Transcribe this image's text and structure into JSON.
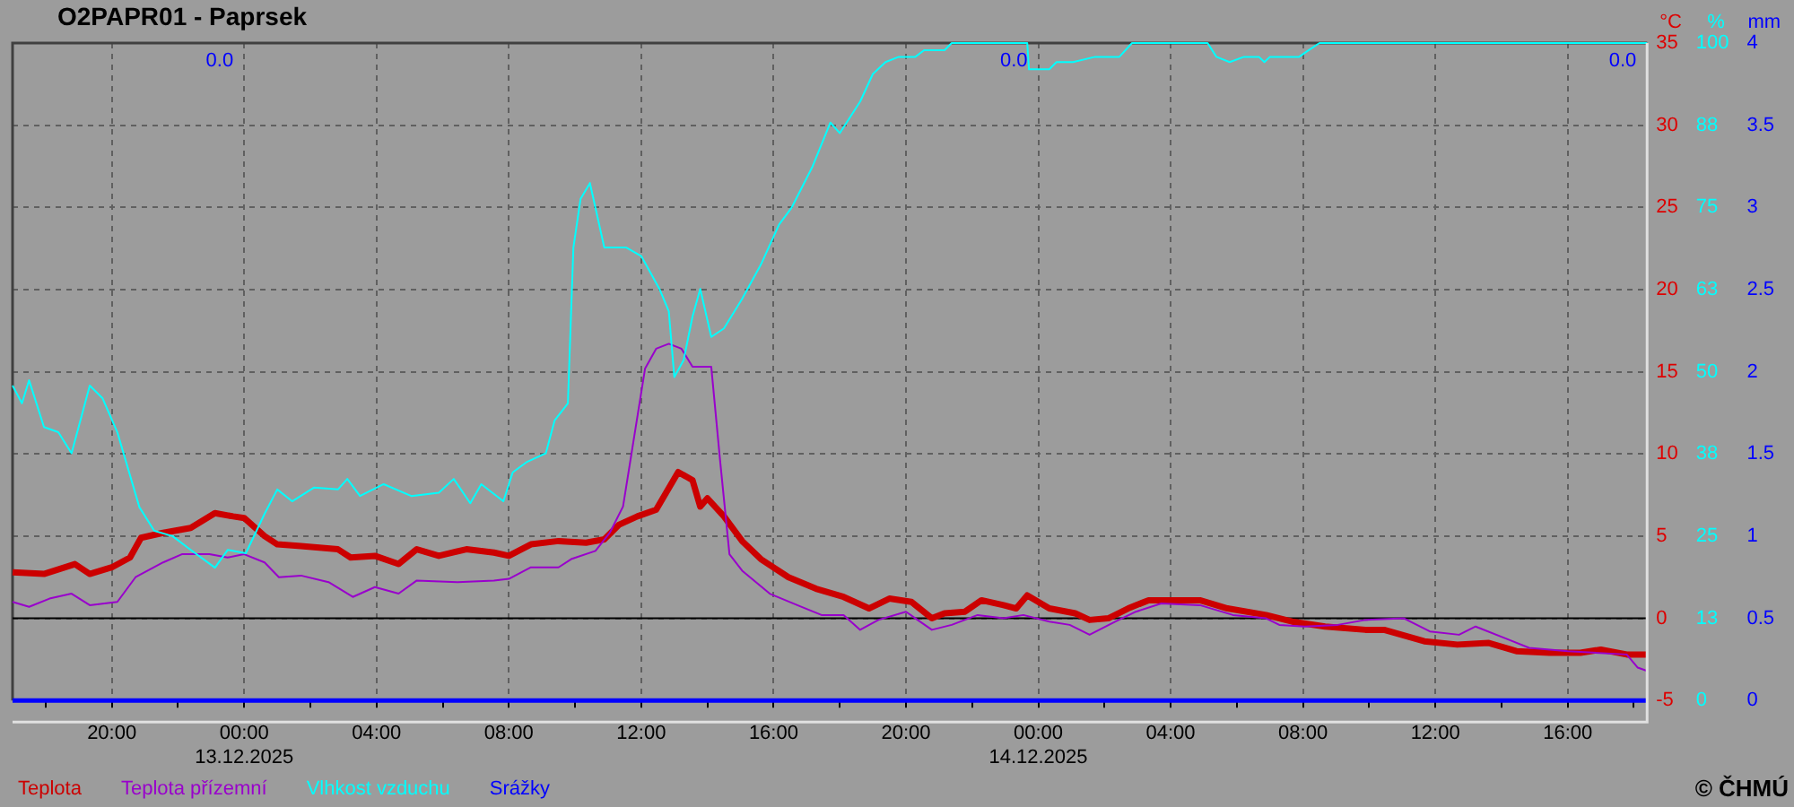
{
  "chart_data": {
    "type": "line",
    "title": "O2PAPR01 - Paprsek",
    "ylabel": "°C",
    "y2label": "%",
    "y3label": "mm",
    "xlim": [
      "2025-12-12T17:00",
      "2025-12-14T18:24"
    ],
    "xticks": [
      {
        "value": "2025-12-12T18:00",
        "label": null
      },
      {
        "value": "2025-12-12T20:00",
        "label": "20:00"
      },
      {
        "value": "2025-12-12T22:00",
        "label": null
      },
      {
        "value": "2025-12-13T00:00",
        "label": "00:00\n13.12.2025"
      },
      {
        "value": "2025-12-13T02:00",
        "label": null
      },
      {
        "value": "2025-12-13T04:00",
        "label": "04:00"
      },
      {
        "value": "2025-12-13T06:00",
        "label": null
      },
      {
        "value": "2025-12-13T08:00",
        "label": "08:00"
      },
      {
        "value": "2025-12-13T10:00",
        "label": null
      },
      {
        "value": "2025-12-13T12:00",
        "label": "12:00"
      },
      {
        "value": "2025-12-13T14:00",
        "label": null
      },
      {
        "value": "2025-12-13T16:00",
        "label": "16:00"
      },
      {
        "value": "2025-12-13T18:00",
        "label": null
      },
      {
        "value": "2025-12-13T20:00",
        "label": "20:00"
      },
      {
        "value": "2025-12-13T22:00",
        "label": null
      },
      {
        "value": "2025-12-14T00:00",
        "label": "00:00\n14.12.2025"
      },
      {
        "value": "2025-12-14T02:00",
        "label": null
      },
      {
        "value": "2025-12-14T04:00",
        "label": "04:00"
      },
      {
        "value": "2025-12-14T06:00",
        "label": null
      },
      {
        "value": "2025-12-14T08:00",
        "label": "08:00"
      },
      {
        "value": "2025-12-14T10:00",
        "label": null
      },
      {
        "value": "2025-12-14T12:00",
        "label": "12:00"
      },
      {
        "value": "2025-12-14T14:00",
        "label": null
      },
      {
        "value": "2025-12-14T16:00",
        "label": "16:00"
      },
      {
        "value": "2025-12-14T18:00",
        "label": null
      }
    ],
    "ylim": [
      -5,
      35
    ],
    "yticks": [
      -5,
      0,
      5,
      10,
      15,
      20,
      25,
      30,
      35
    ],
    "y2lim": [
      0,
      100
    ],
    "y2ticks": [
      0,
      {
        "value": 12.5,
        "label": "13"
      },
      25,
      {
        "value": 37.5,
        "label": "38"
      },
      50,
      {
        "value": 62.5,
        "label": "63"
      },
      75,
      {
        "value": 87.5,
        "label": "88"
      },
      100
    ],
    "y3lim": [
      0,
      4
    ],
    "y3ticks": [
      0,
      0.5,
      1,
      1.5,
      2,
      2.5,
      3,
      3.5,
      4
    ],
    "grid": true,
    "legend": "bottom",
    "marker": "none",
    "ref_lines": [
      {
        "axis": "y",
        "value": 0,
        "color": "#000000"
      }
    ],
    "annotations": [
      "0.0",
      "0.0",
      "0.0",
      "© ČHMÚ"
    ],
    "series": [
      {
        "name": "Teplota",
        "color": "#cc0000",
        "x": [
          "2025-12-12T17:00",
          "2025-12-12T17:57",
          "2025-12-12T18:53",
          "2025-12-12T19:20",
          "2025-12-12T20:00",
          "2025-12-12T20:33",
          "2025-12-12T20:53",
          "2025-12-12T21:33",
          "2025-12-12T22:23",
          "2025-12-12T23:07",
          "2025-12-12T23:40",
          "2025-12-13T00:00",
          "2025-12-13T00:37",
          "2025-12-13T01:00",
          "2025-12-13T01:43",
          "2025-12-13T02:50",
          "2025-12-13T03:13",
          "2025-12-13T03:57",
          "2025-12-13T04:40",
          "2025-12-13T05:13",
          "2025-12-13T05:53",
          "2025-12-13T06:43",
          "2025-12-13T07:33",
          "2025-12-13T08:00",
          "2025-12-13T08:40",
          "2025-12-13T09:30",
          "2025-12-13T10:20",
          "2025-12-13T10:53",
          "2025-12-13T11:20",
          "2025-12-13T11:53",
          "2025-12-13T12:27",
          "2025-12-13T13:07",
          "2025-12-13T13:33",
          "2025-12-13T13:47",
          "2025-12-13T14:00",
          "2025-12-13T14:30",
          "2025-12-13T15:03",
          "2025-12-13T15:37",
          "2025-12-13T16:27",
          "2025-12-13T17:17",
          "2025-12-13T18:07",
          "2025-12-13T18:53",
          "2025-12-13T19:30",
          "2025-12-13T20:10",
          "2025-12-13T20:47",
          "2025-12-13T21:10",
          "2025-12-13T21:47",
          "2025-12-13T22:17",
          "2025-12-13T22:57",
          "2025-12-13T23:20",
          "2025-12-13T23:40",
          "2025-12-14T00:20",
          "2025-12-14T01:07",
          "2025-12-14T01:33",
          "2025-12-14T02:07",
          "2025-12-14T02:43",
          "2025-12-14T03:20",
          "2025-12-14T04:07",
          "2025-12-14T04:53",
          "2025-12-14T05:43",
          "2025-12-14T06:53",
          "2025-12-14T07:40",
          "2025-12-14T08:40",
          "2025-12-14T09:53",
          "2025-12-14T10:27",
          "2025-12-14T11:40",
          "2025-12-14T12:40",
          "2025-12-14T13:37",
          "2025-12-14T14:27",
          "2025-12-14T15:27",
          "2025-12-14T16:23",
          "2025-12-14T17:00",
          "2025-12-14T17:47",
          "2025-12-14T18:23"
        ],
        "values": [
          2.8,
          2.7,
          3.3,
          2.7,
          3.1,
          3.7,
          4.9,
          5.2,
          5.5,
          6.4,
          6.2,
          6.1,
          5.0,
          4.5,
          4.4,
          4.2,
          3.7,
          3.8,
          3.3,
          4.2,
          3.8,
          4.2,
          4.0,
          3.8,
          4.5,
          4.7,
          4.6,
          4.8,
          5.7,
          6.2,
          6.6,
          8.9,
          8.4,
          6.8,
          7.3,
          6.2,
          4.7,
          3.6,
          2.5,
          1.8,
          1.3,
          0.6,
          1.2,
          1.0,
          0.0,
          0.3,
          0.4,
          1.1,
          0.8,
          0.6,
          1.4,
          0.6,
          0.3,
          -0.1,
          0.0,
          0.6,
          1.1,
          1.1,
          1.1,
          0.6,
          0.2,
          -0.2,
          -0.5,
          -0.7,
          -0.7,
          -1.4,
          -1.6,
          -1.5,
          -2.0,
          -2.1,
          -2.1,
          -1.9,
          -2.2,
          -2.2
        ]
      },
      {
        "name": "Teplota přízemní",
        "color": "#9900cc",
        "x": [
          "2025-12-12T17:00",
          "2025-12-12T17:30",
          "2025-12-12T18:07",
          "2025-12-12T18:47",
          "2025-12-12T19:20",
          "2025-12-12T20:10",
          "2025-12-12T20:43",
          "2025-12-12T21:33",
          "2025-12-12T22:07",
          "2025-12-12T22:57",
          "2025-12-12T23:30",
          "2025-12-13T00:00",
          "2025-12-13T00:37",
          "2025-12-13T01:03",
          "2025-12-13T01:43",
          "2025-12-13T02:33",
          "2025-12-13T03:17",
          "2025-12-13T03:57",
          "2025-12-13T04:40",
          "2025-12-13T05:13",
          "2025-12-13T06:27",
          "2025-12-13T07:33",
          "2025-12-13T08:00",
          "2025-12-13T08:40",
          "2025-12-13T09:30",
          "2025-12-13T09:53",
          "2025-12-13T10:37",
          "2025-12-13T11:03",
          "2025-12-13T11:27",
          "2025-12-13T11:47",
          "2025-12-13T12:07",
          "2025-12-13T12:27",
          "2025-12-13T12:50",
          "2025-12-13T13:13",
          "2025-12-13T13:33",
          "2025-12-13T14:07",
          "2025-12-13T14:23",
          "2025-12-13T14:40",
          "2025-12-13T15:03",
          "2025-12-13T15:53",
          "2025-12-13T16:43",
          "2025-12-13T17:27",
          "2025-12-13T18:07",
          "2025-12-13T18:37",
          "2025-12-13T19:10",
          "2025-12-13T20:00",
          "2025-12-13T20:47",
          "2025-12-13T21:23",
          "2025-12-13T22:10",
          "2025-12-13T22:57",
          "2025-12-13T23:33",
          "2025-12-14T00:20",
          "2025-12-14T00:57",
          "2025-12-14T01:33",
          "2025-12-14T02:20",
          "2025-12-14T02:57",
          "2025-12-14T03:43",
          "2025-12-14T04:53",
          "2025-12-14T05:53",
          "2025-12-14T06:53",
          "2025-12-14T07:17",
          "2025-12-14T08:03",
          "2025-12-14T09:03",
          "2025-12-14T09:53",
          "2025-12-14T11:03",
          "2025-12-14T11:50",
          "2025-12-14T12:43",
          "2025-12-14T13:13",
          "2025-12-14T14:13",
          "2025-12-14T14:50",
          "2025-12-14T16:00",
          "2025-12-14T17:47",
          "2025-12-14T18:07",
          "2025-12-14T18:24"
        ],
        "values": [
          1.0,
          0.7,
          1.2,
          1.5,
          0.8,
          1.0,
          2.5,
          3.4,
          3.9,
          3.9,
          3.7,
          3.9,
          3.4,
          2.5,
          2.6,
          2.2,
          1.3,
          1.9,
          1.5,
          2.3,
          2.2,
          2.3,
          2.4,
          3.1,
          3.1,
          3.6,
          4.1,
          5.2,
          6.8,
          11.0,
          15.2,
          16.4,
          16.7,
          16.4,
          15.3,
          15.3,
          9.6,
          3.9,
          2.9,
          1.5,
          0.8,
          0.2,
          0.2,
          -0.7,
          -0.1,
          0.4,
          -0.7,
          -0.4,
          0.2,
          0.0,
          0.2,
          -0.2,
          -0.4,
          -1.0,
          -0.2,
          0.4,
          0.9,
          0.8,
          0.2,
          0.0,
          -0.4,
          -0.5,
          -0.4,
          -0.1,
          0.0,
          -0.8,
          -1.0,
          -0.5,
          -1.3,
          -1.8,
          -2.0,
          -2.2,
          -3.0,
          -3.2
        ]
      },
      {
        "name": "Vlhkost vzduchu",
        "color": "#00ffff",
        "axis": "y2",
        "x": [
          "2025-12-12T17:00",
          "2025-12-12T17:17",
          "2025-12-12T17:30",
          "2025-12-12T17:57",
          "2025-12-12T18:23",
          "2025-12-12T18:47",
          "2025-12-12T19:20",
          "2025-12-12T19:43",
          "2025-12-12T20:10",
          "2025-12-12T20:50",
          "2025-12-12T21:17",
          "2025-12-12T21:50",
          "2025-12-12T22:23",
          "2025-12-12T23:07",
          "2025-12-12T23:30",
          "2025-12-13T00:03",
          "2025-12-13T00:37",
          "2025-12-13T01:00",
          "2025-12-13T01:27",
          "2025-12-13T02:07",
          "2025-12-13T02:50",
          "2025-12-13T03:07",
          "2025-12-13T03:30",
          "2025-12-13T04:13",
          "2025-12-13T05:03",
          "2025-12-13T05:53",
          "2025-12-13T06:20",
          "2025-12-13T06:50",
          "2025-12-13T07:10",
          "2025-12-13T07:50",
          "2025-12-13T08:07",
          "2025-12-13T08:33",
          "2025-12-13T09:07",
          "2025-12-13T09:23",
          "2025-12-13T09:47",
          "2025-12-13T09:57",
          "2025-12-13T10:10",
          "2025-12-13T10:27",
          "2025-12-13T10:53",
          "2025-12-13T11:33",
          "2025-12-13T12:00",
          "2025-12-13T12:33",
          "2025-12-13T12:50",
          "2025-12-13T13:00",
          "2025-12-13T13:17",
          "2025-12-13T13:33",
          "2025-12-13T13:47",
          "2025-12-13T14:07",
          "2025-12-13T14:30",
          "2025-12-13T15:03",
          "2025-12-13T15:37",
          "2025-12-13T16:10",
          "2025-12-13T16:33",
          "2025-12-13T17:10",
          "2025-12-13T17:43",
          "2025-12-13T18:00",
          "2025-12-13T18:37",
          "2025-12-13T19:00",
          "2025-12-13T19:23",
          "2025-12-13T19:47",
          "2025-12-13T20:17",
          "2025-12-13T20:33",
          "2025-12-13T21:10",
          "2025-12-13T21:23",
          "2025-12-13T23:40",
          "2025-12-13T23:43",
          "2025-12-14T00:20",
          "2025-12-14T00:33",
          "2025-12-14T01:03",
          "2025-12-14T01:43",
          "2025-12-14T02:27",
          "2025-12-14T02:50",
          "2025-12-14T05:07",
          "2025-12-14T05:23",
          "2025-12-14T05:47",
          "2025-12-14T06:13",
          "2025-12-14T06:40",
          "2025-12-14T06:50",
          "2025-12-14T07:00",
          "2025-12-14T07:53",
          "2025-12-14T08:10",
          "2025-12-14T08:30",
          "2025-12-14T18:24"
        ],
        "values": [
          47.9,
          45.2,
          48.7,
          41.6,
          40.8,
          37.6,
          47.9,
          46.0,
          40.8,
          29.4,
          25.8,
          25.0,
          22.9,
          20.2,
          22.9,
          22.4,
          28.4,
          32.1,
          30.3,
          32.4,
          32.1,
          33.7,
          31.1,
          32.9,
          31.1,
          31.6,
          33.7,
          30.0,
          32.9,
          30.3,
          34.7,
          36.3,
          37.6,
          42.6,
          45.2,
          68.9,
          76.3,
          78.7,
          68.9,
          68.9,
          67.6,
          62.6,
          59.2,
          49.2,
          51.8,
          58.4,
          62.6,
          55.3,
          56.6,
          61.1,
          66.3,
          72.4,
          75.0,
          81.1,
          87.9,
          86.3,
          91.1,
          95.3,
          97.1,
          97.9,
          97.9,
          98.9,
          98.9,
          100,
          100,
          96.0,
          96.0,
          97.1,
          97.1,
          97.9,
          97.9,
          100,
          100,
          97.9,
          97.1,
          97.9,
          97.9,
          97.1,
          97.9,
          97.9,
          98.9,
          100,
          100
        ]
      },
      {
        "name": "Srážky",
        "color": "#0000ff",
        "axis": "y3",
        "x": [
          "2025-12-12T17:00",
          "2025-12-14T18:24"
        ],
        "values": [
          0,
          0
        ]
      }
    ]
  }
}
